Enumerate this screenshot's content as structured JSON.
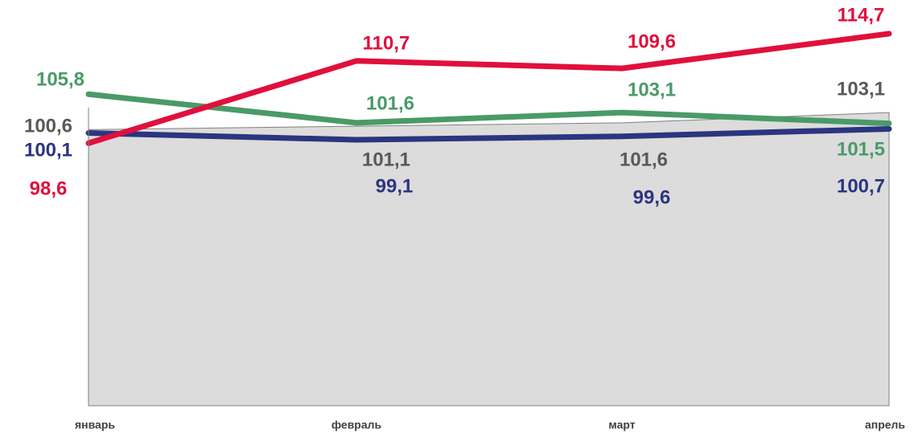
{
  "chart_data": {
    "type": "line",
    "categories": [
      "январь",
      "февраль",
      "март",
      "апрель"
    ],
    "ylim": [
      60,
      118
    ],
    "series": [
      {
        "name": "gray",
        "kind": "area",
        "color": "#7f7f7f",
        "values": [
          100.6,
          101.1,
          101.6,
          103.1
        ],
        "value_labels": [
          "100,6",
          "101,1",
          "101,6",
          "103,1"
        ]
      },
      {
        "name": "blue",
        "color": "#2b3580",
        "values": [
          100.1,
          99.1,
          99.6,
          100.7
        ],
        "value_labels": [
          "100,1",
          "99,1",
          "99,6",
          "100,7"
        ]
      },
      {
        "name": "green",
        "color": "#4a9a68",
        "values": [
          105.8,
          101.6,
          103.1,
          101.5
        ],
        "value_labels": [
          "105,8",
          "101,6",
          "103,1",
          "101,5"
        ]
      },
      {
        "name": "red",
        "color": "#e0103c",
        "values": [
          98.6,
          110.7,
          109.6,
          114.7
        ],
        "value_labels": [
          "98,6",
          "110,7",
          "109,6",
          "114,7"
        ]
      }
    ]
  }
}
